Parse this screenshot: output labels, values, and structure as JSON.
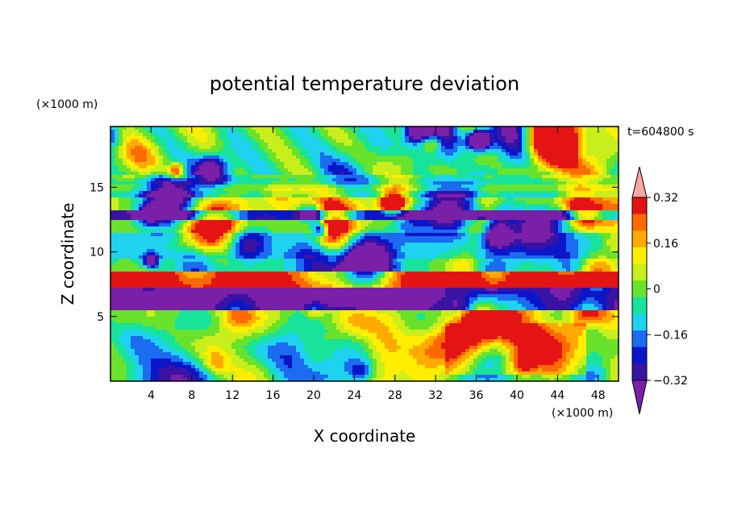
{
  "chart_data": {
    "type": "heatmap",
    "title": "potential temperature deviation",
    "xlabel": "X coordinate",
    "ylabel": "Z coordinate",
    "x_unit": "(×1000 m)",
    "y_unit": "(×1000 m)",
    "time_label": "t=604800 s",
    "xlim": [
      0,
      50
    ],
    "ylim": [
      0,
      19.7
    ],
    "x_ticks": [
      4,
      8,
      12,
      16,
      20,
      24,
      28,
      32,
      36,
      40,
      44,
      48
    ],
    "y_ticks": [
      5,
      10,
      15
    ],
    "grid": false,
    "colorbar": {
      "placement": "right",
      "tick_labels": [
        "0.32",
        "0.16",
        "0",
        "−0.16",
        "−0.32"
      ],
      "tick_values": [
        0.32,
        0.16,
        0,
        -0.16,
        -0.32
      ],
      "levels": [
        -0.4,
        -0.32,
        -0.24,
        -0.16,
        -0.08,
        0,
        0.08,
        0.16,
        0.24,
        0.32,
        0.4
      ],
      "colors": [
        "#7a1fa8",
        "#3b13a3",
        "#0c16c9",
        "#1b6cf0",
        "#1ed2f0",
        "#18e39a",
        "#69e22c",
        "#c8ee1c",
        "#ffee00",
        "#ffaa00",
        "#ff6a00",
        "#e41414",
        "#f6a6a4"
      ],
      "extend": "both"
    }
  }
}
